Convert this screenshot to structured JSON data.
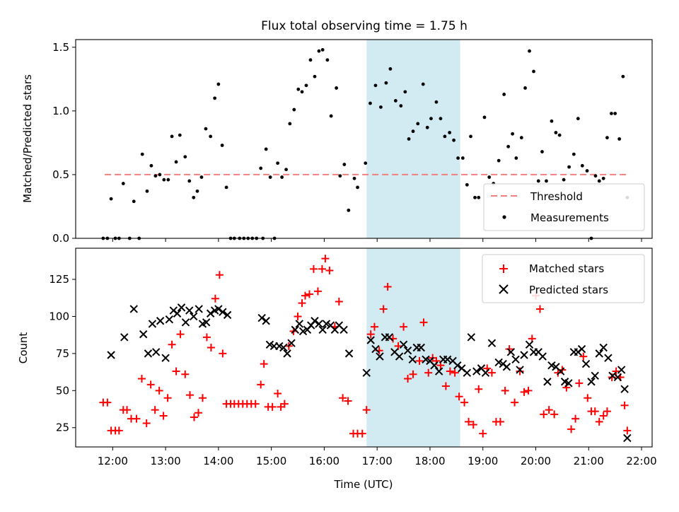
{
  "title": "Flux total observing time = 1.75 h",
  "shade_color": "#add8e6",
  "chart_data": [
    {
      "type": "scatter",
      "ylabel": "Matched/Predicted stars",
      "ylim": [
        0,
        1.56
      ],
      "yticks": [
        0.0,
        0.5,
        1.0,
        1.5
      ],
      "ytick_labels": [
        "0.0",
        "0.5",
        "1.0",
        "1.5"
      ],
      "xlim": [
        11.3,
        22.2
      ],
      "xticks": [
        12,
        13,
        14,
        15,
        16,
        17,
        18,
        19,
        20,
        21,
        22
      ],
      "shaded_x": [
        16.8,
        18.57
      ],
      "legend_position": "lower right",
      "threshold": {
        "name": "Threshold",
        "y": 0.5,
        "x": [
          11.85,
          21.75
        ],
        "color": "#f08080"
      },
      "series": [
        {
          "name": "Measurements",
          "marker": "dot",
          "color": "#000000",
          "x": [
            11.82,
            11.9,
            11.97,
            12.05,
            12.12,
            12.2,
            12.32,
            12.4,
            12.5,
            12.56,
            12.65,
            12.73,
            12.81,
            12.89,
            12.97,
            13.05,
            13.12,
            13.2,
            13.27,
            13.37,
            13.45,
            13.53,
            13.6,
            13.68,
            13.76,
            13.85,
            13.93,
            14.0,
            14.07,
            14.15,
            14.23,
            14.3,
            14.4,
            14.48,
            14.56,
            14.64,
            14.72,
            14.8,
            14.84,
            14.9,
            14.98,
            15.06,
            15.12,
            15.2,
            15.28,
            15.35,
            15.43,
            15.51,
            15.58,
            15.66,
            15.74,
            15.82,
            15.9,
            15.97,
            16.06,
            16.13,
            16.23,
            16.3,
            16.38,
            16.46,
            16.57,
            16.63,
            16.78,
            16.87,
            16.97,
            17.07,
            17.17,
            17.25,
            17.35,
            17.45,
            17.53,
            17.6,
            17.68,
            17.77,
            17.87,
            17.95,
            18.02,
            18.12,
            18.2,
            18.28,
            18.37,
            18.45,
            18.53,
            18.62,
            18.7,
            18.77,
            18.85,
            18.92,
            19.03,
            19.12,
            19.2,
            19.3,
            19.4,
            19.48,
            19.56,
            19.63,
            19.73,
            19.8,
            19.88,
            19.96,
            20.05,
            20.12,
            20.2,
            20.3,
            20.38,
            20.45,
            20.53,
            20.63,
            20.72,
            20.8,
            20.88,
            20.97,
            21.05,
            21.13,
            21.2,
            21.28,
            21.35,
            21.43,
            21.5,
            21.58,
            21.65,
            21.73
          ],
          "y": [
            0.0,
            0.0,
            0.31,
            0.0,
            0.0,
            0.43,
            0.0,
            0.29,
            0.0,
            0.66,
            0.37,
            0.57,
            0.49,
            0.5,
            0.46,
            0.46,
            0.8,
            0.6,
            0.81,
            0.64,
            0.45,
            0.32,
            0.37,
            0.48,
            0.86,
            0.8,
            1.1,
            1.21,
            0.73,
            0.4,
            0.0,
            0.0,
            0.0,
            0.0,
            0.0,
            0.0,
            0.0,
            0.55,
            0.0,
            0.7,
            0.48,
            0.0,
            0.59,
            0.48,
            0.54,
            0.9,
            1.01,
            1.17,
            1.15,
            1.2,
            1.4,
            1.27,
            1.47,
            1.48,
            1.4,
            0.96,
            1.18,
            0.49,
            0.58,
            0.22,
            0.47,
            0.4,
            0.59,
            1.06,
            1.2,
            1.03,
            1.22,
            1.33,
            1.08,
            1.04,
            1.15,
            0.78,
            0.84,
            0.9,
            1.21,
            0.87,
            0.94,
            1.07,
            0.94,
            0.8,
            0.83,
            0.77,
            0.63,
            0.63,
            0.42,
            0.8,
            0.32,
            0.32,
            0.95,
            0.48,
            0.43,
            0.61,
            1.13,
            0.72,
            0.82,
            0.63,
            0.79,
            1.18,
            1.47,
            1.31,
            0.45,
            0.68,
            0.45,
            0.92,
            0.83,
            0.81,
            0.46,
            0.56,
            0.66,
            0.94,
            0.57,
            0.53,
            0.0,
            0.49,
            0.45,
            0.47,
            0.79,
            0.98,
            0.98,
            0.78,
            1.27,
            0.32
          ]
        }
      ]
    },
    {
      "type": "scatter",
      "xlabel": "Time (UTC)",
      "ylabel": "Count",
      "ylim": [
        12,
        146
      ],
      "yticks": [
        25,
        50,
        75,
        100,
        125
      ],
      "xlim": [
        11.3,
        22.2
      ],
      "xticks": [
        12,
        13,
        14,
        15,
        16,
        17,
        18,
        19,
        20,
        21,
        22
      ],
      "xtick_labels": [
        "12:00",
        "13:00",
        "14:00",
        "15:00",
        "16:00",
        "17:00",
        "18:00",
        "19:00",
        "20:00",
        "21:00",
        "22:00"
      ],
      "shaded_x": [
        16.8,
        18.57
      ],
      "legend_position": "upper right",
      "series": [
        {
          "name": "Matched stars",
          "marker": "plus",
          "color": "#ff0000",
          "x": [
            11.82,
            11.9,
            11.97,
            12.05,
            12.12,
            12.2,
            12.27,
            12.35,
            12.45,
            12.55,
            12.64,
            12.72,
            12.8,
            12.88,
            12.96,
            13.04,
            13.12,
            13.2,
            13.28,
            13.37,
            13.46,
            13.54,
            13.62,
            13.7,
            13.78,
            13.86,
            13.94,
            14.02,
            14.08,
            14.15,
            14.23,
            14.3,
            14.38,
            14.46,
            14.54,
            14.62,
            14.7,
            14.8,
            14.86,
            14.94,
            15.02,
            15.12,
            15.18,
            15.25,
            15.33,
            15.42,
            15.5,
            15.58,
            15.64,
            15.72,
            15.8,
            15.88,
            15.96,
            16.02,
            16.1,
            16.2,
            16.28,
            16.35,
            16.45,
            16.55,
            16.63,
            16.72,
            16.8,
            16.88,
            16.95,
            17.04,
            17.12,
            17.2,
            17.3,
            17.4,
            17.5,
            17.58,
            17.68,
            17.8,
            17.88,
            17.97,
            18.05,
            18.12,
            18.2,
            18.3,
            18.38,
            18.47,
            18.55,
            18.65,
            18.73,
            18.82,
            18.92,
            19.0,
            19.08,
            19.17,
            19.25,
            19.33,
            19.42,
            19.5,
            19.6,
            19.7,
            19.78,
            19.86,
            19.93,
            20.0,
            20.08,
            20.15,
            20.25,
            20.35,
            20.42,
            20.5,
            20.58,
            20.67,
            20.75,
            20.82,
            20.9,
            20.98,
            21.05,
            21.12,
            21.2,
            21.28,
            21.35,
            21.44,
            21.52,
            21.6,
            21.68,
            21.73
          ],
          "y": [
            42,
            42,
            23,
            23,
            23,
            37,
            37,
            31,
            31,
            58,
            28,
            54,
            37,
            50,
            33,
            45,
            81,
            63,
            88,
            61,
            47,
            32,
            35,
            45,
            86,
            79,
            112,
            128,
            75,
            41,
            41,
            41,
            41,
            41,
            41,
            41,
            41,
            54,
            68,
            39,
            39,
            48,
            39,
            41,
            80,
            90,
            100,
            109,
            114,
            115,
            132,
            117,
            132,
            139,
            131,
            93,
            110,
            45,
            43,
            21,
            21,
            21,
            37,
            88,
            93,
            77,
            105,
            120,
            85,
            80,
            93,
            58,
            61,
            70,
            96,
            62,
            72,
            70,
            67,
            53,
            63,
            62,
            46,
            42,
            29,
            27,
            51,
            21,
            65,
            62,
            29,
            29,
            50,
            78,
            42,
            63,
            49,
            50,
            85,
            114,
            105,
            34,
            37,
            34,
            62,
            64,
            52,
            24,
            31,
            55,
            73,
            45,
            36,
            36,
            29,
            33,
            36,
            59,
            63,
            59,
            40,
            23
          ]
        },
        {
          "name": "Predicted stars",
          "marker": "x",
          "color": "#000000",
          "x": [
            11.97,
            12.22,
            12.4,
            12.58,
            12.67,
            12.75,
            12.82,
            12.9,
            13.0,
            13.07,
            13.15,
            13.22,
            13.3,
            13.38,
            13.45,
            13.53,
            13.63,
            13.7,
            13.77,
            13.85,
            13.93,
            14.0,
            14.08,
            14.17,
            14.82,
            14.9,
            14.97,
            15.05,
            15.15,
            15.23,
            15.3,
            15.38,
            15.45,
            15.53,
            15.6,
            15.68,
            15.75,
            15.82,
            15.9,
            15.97,
            16.04,
            16.12,
            16.2,
            16.28,
            16.37,
            16.47,
            16.8,
            16.88,
            16.97,
            17.05,
            17.15,
            17.23,
            17.33,
            17.42,
            17.5,
            17.58,
            17.67,
            17.75,
            17.83,
            17.92,
            18.0,
            18.08,
            18.17,
            18.25,
            18.33,
            18.43,
            18.52,
            18.6,
            18.7,
            18.78,
            18.88,
            18.97,
            19.05,
            19.17,
            19.3,
            19.38,
            19.45,
            19.53,
            19.62,
            19.7,
            19.78,
            19.88,
            19.96,
            20.05,
            20.13,
            20.22,
            20.3,
            20.38,
            20.47,
            20.55,
            20.62,
            20.72,
            20.8,
            20.87,
            20.95,
            21.05,
            21.12,
            21.2,
            21.28,
            21.37,
            21.45,
            21.55,
            21.62,
            21.68,
            21.73
          ],
          "y": [
            74,
            86,
            105,
            88,
            75,
            95,
            76,
            97,
            72,
            98,
            104,
            102,
            106,
            96,
            104,
            100,
            105,
            95,
            96,
            102,
            104,
            105,
            103,
            101,
            99,
            97,
            81,
            80,
            80,
            79,
            75,
            82,
            91,
            95,
            90,
            91,
            94,
            97,
            95,
            91,
            95,
            94,
            91,
            94,
            91,
            75,
            62,
            84,
            78,
            73,
            86,
            86,
            76,
            73,
            81,
            77,
            71,
            79,
            79,
            71,
            70,
            67,
            63,
            71,
            71,
            70,
            67,
            65,
            62,
            86,
            63,
            65,
            62,
            82,
            69,
            68,
            66,
            76,
            71,
            64,
            74,
            81,
            76,
            76,
            73,
            56,
            67,
            66,
            63,
            56,
            55,
            76,
            76,
            78,
            68,
            56,
            60,
            75,
            79,
            72,
            60,
            59,
            64,
            51,
            18
          ]
        }
      ]
    }
  ]
}
